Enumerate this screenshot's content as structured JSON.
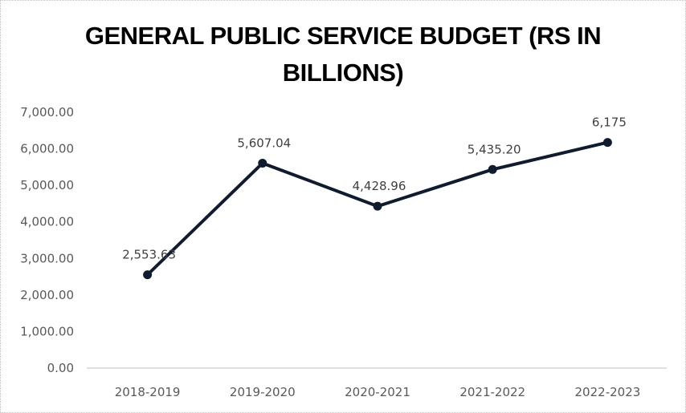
{
  "chart_data": {
    "type": "line",
    "title": "GENERAL PUBLIC SERVICE BUDGET (RS IN BILLIONS)",
    "title_lines": [
      "GENERAL PUBLIC SERVICE BUDGET (RS IN",
      "BILLIONS)"
    ],
    "xlabel": "",
    "ylabel": "",
    "categories": [
      "2018-2019",
      "2019-2020",
      "2020-2021",
      "2021-2022",
      "2022-2023"
    ],
    "series": [
      {
        "name": "General Public Service Budget",
        "values": [
          2553.63,
          5607.04,
          4428.96,
          5435.2,
          6175
        ],
        "data_labels": [
          "2,553.63",
          "5,607.04",
          "4,428.96",
          "5,435.20",
          "6,175"
        ],
        "color": "#111b2e"
      }
    ],
    "ylim": [
      0,
      7000
    ],
    "yticks": [
      0,
      1000,
      2000,
      3000,
      4000,
      5000,
      6000,
      7000
    ],
    "ytick_labels": [
      "0.00",
      "1,000.00",
      "2,000.00",
      "3,000.00",
      "4,000.00",
      "5,000.00",
      "6,000.00",
      "7,000.00"
    ],
    "grid": false,
    "legend": "none",
    "axis_color": "#bfbfbf",
    "tick_label_color": "#595959"
  }
}
